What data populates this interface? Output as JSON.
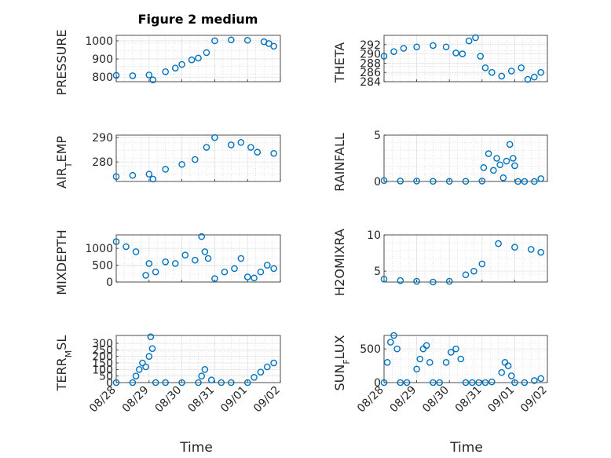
{
  "figure": {
    "title": "Figure 2 medium",
    "xlabel": "Time",
    "marker_color": "#0072BD",
    "x_ticks": [
      "08/28",
      "08/29",
      "08/30",
      "08/31",
      "09/01",
      "09/02"
    ]
  },
  "chart_data": [
    {
      "type": "scatter",
      "ylabel": "PRESSURE",
      "ylim": [
        775,
        1030
      ],
      "yticks": [
        800,
        900,
        1000
      ],
      "grid": true,
      "x": [
        0,
        0.5,
        1,
        1.12,
        1.5,
        1.8,
        2,
        2.3,
        2.5,
        2.75,
        3,
        3.5,
        4,
        4.5,
        4.65,
        4.8
      ],
      "y": [
        810,
        808,
        812,
        785,
        830,
        850,
        870,
        895,
        905,
        935,
        1000,
        1005,
        1003,
        995,
        985,
        970
      ]
    },
    {
      "type": "scatter",
      "ylabel": "THETA",
      "ylim": [
        284,
        294
      ],
      "yticks": [
        284,
        286,
        288,
        290,
        292
      ],
      "grid": true,
      "x": [
        0,
        0.3,
        0.6,
        1,
        1.5,
        1.9,
        2.2,
        2.4,
        2.6,
        2.8,
        2.95,
        3.1,
        3.3,
        3.6,
        3.9,
        4.2,
        4.4,
        4.6,
        4.8
      ],
      "y": [
        289.5,
        290.5,
        291.2,
        291.5,
        291.8,
        291.5,
        290.2,
        290.0,
        292.8,
        293.5,
        289.5,
        287.0,
        286.0,
        285.2,
        286.3,
        287.0,
        284.5,
        285.0,
        286.0
      ]
    },
    {
      "type": "scatter",
      "ylabel": "AIR_TEMP",
      "ylim": [
        272,
        291
      ],
      "yticks": [
        280,
        290
      ],
      "grid": true,
      "x": [
        0,
        0.5,
        1,
        1.12,
        1.5,
        2,
        2.4,
        2.75,
        3,
        3.5,
        3.8,
        4.1,
        4.3,
        4.8
      ],
      "y": [
        274,
        274.5,
        275,
        273,
        277,
        279,
        281,
        286,
        290,
        287,
        288,
        286,
        284,
        283.5
      ]
    },
    {
      "type": "scatter",
      "ylabel": "RAINFALL",
      "ylim": [
        0,
        5
      ],
      "yticks": [
        0,
        5
      ],
      "grid": true,
      "x": [
        0,
        0.5,
        1,
        1.5,
        2,
        2.5,
        3,
        3.05,
        3.2,
        3.35,
        3.45,
        3.55,
        3.65,
        3.75,
        3.85,
        3.95,
        4,
        4.1,
        4.3,
        4.6,
        4.8
      ],
      "y": [
        0.1,
        0.05,
        0.05,
        0.02,
        0.02,
        0.02,
        0.05,
        1.5,
        3.0,
        1.2,
        2.5,
        1.8,
        0.4,
        2.2,
        4.0,
        2.5,
        1.7,
        0.0,
        0.0,
        0.0,
        0.3
      ]
    },
    {
      "type": "scatter",
      "ylabel": "MIXDEPTH",
      "ylim": [
        0,
        1400
      ],
      "yticks": [
        0,
        500,
        1000
      ],
      "grid": true,
      "x": [
        0,
        0.3,
        0.6,
        0.9,
        1.0,
        1.2,
        1.5,
        1.8,
        2.1,
        2.4,
        2.6,
        2.7,
        2.8,
        3.0,
        3.3,
        3.6,
        3.8,
        4.0,
        4.2,
        4.4,
        4.6,
        4.8
      ],
      "y": [
        1200,
        1050,
        900,
        200,
        550,
        300,
        600,
        550,
        800,
        650,
        1350,
        900,
        700,
        100,
        300,
        400,
        700,
        150,
        120,
        300,
        500,
        400
      ]
    },
    {
      "type": "scatter",
      "ylabel": "H2OMIXRA",
      "ylim": [
        3.5,
        10
      ],
      "yticks": [
        5,
        10
      ],
      "grid": true,
      "x": [
        0,
        0.5,
        1,
        1.5,
        2,
        2.5,
        2.75,
        3,
        3.5,
        4,
        4.5,
        4.8
      ],
      "y": [
        3.9,
        3.7,
        3.6,
        3.5,
        3.6,
        4.5,
        5.0,
        6.0,
        8.8,
        8.3,
        8.0,
        7.6
      ]
    },
    {
      "type": "scatter",
      "ylabel": "TERR_MSL",
      "ylim": [
        0,
        360
      ],
      "yticks": [
        0,
        50,
        100,
        150,
        200,
        250,
        300
      ],
      "grid": true,
      "x": [
        0,
        0.5,
        0.6,
        0.7,
        0.8,
        0.9,
        1.0,
        1.05,
        1.1,
        1.2,
        1.5,
        2,
        2.5,
        2.6,
        2.7,
        2.9,
        3.2,
        3.5,
        4,
        4.2,
        4.4,
        4.6,
        4.8
      ],
      "y": [
        0,
        0,
        50,
        100,
        150,
        120,
        200,
        350,
        260,
        0,
        0,
        0,
        0,
        50,
        100,
        20,
        0,
        0,
        0,
        40,
        80,
        120,
        150
      ]
    },
    {
      "type": "scatter",
      "ylabel": "SUN_FLUX",
      "ylim": [
        0,
        700
      ],
      "yticks": [
        0,
        500
      ],
      "grid": true,
      "x": [
        0,
        0.1,
        0.2,
        0.3,
        0.4,
        0.5,
        0.7,
        1.0,
        1.1,
        1.2,
        1.3,
        1.4,
        1.5,
        1.7,
        1.9,
        2.05,
        2.2,
        2.35,
        2.5,
        2.7,
        2.9,
        3.1,
        3.3,
        3.6,
        3.7,
        3.8,
        3.9,
        4.0,
        4.3,
        4.6,
        4.8
      ],
      "y": [
        0,
        300,
        600,
        700,
        500,
        0,
        0,
        200,
        350,
        500,
        550,
        300,
        0,
        0,
        300,
        450,
        500,
        350,
        0,
        0,
        0,
        0,
        10,
        150,
        300,
        250,
        100,
        0,
        0,
        30,
        60
      ]
    }
  ]
}
